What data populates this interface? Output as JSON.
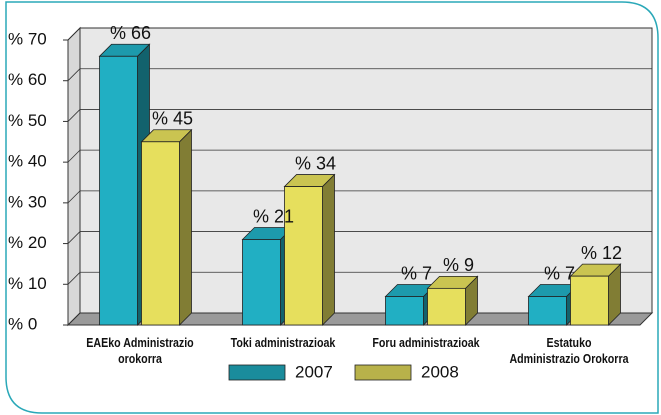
{
  "chart_data": {
    "type": "bar3d",
    "categories": [
      "EAEko Administrazio\norokorra",
      "Toki administrazioak",
      "Foru administrazioak",
      "Estatuko\nAdministrazio Orokorra"
    ],
    "series": [
      {
        "name": "2007",
        "color": "#1a8c9c",
        "values": [
          66,
          21,
          7,
          7
        ],
        "value_labels": [
          "% 66",
          "% 21",
          "% 7",
          "% 7"
        ]
      },
      {
        "name": "2008",
        "color": "#b8b24a",
        "values": [
          45,
          34,
          9,
          12
        ],
        "value_labels": [
          "% 45",
          "% 34",
          "% 9",
          "% 12"
        ]
      }
    ],
    "ylim": [
      0,
      70
    ],
    "yticks": [
      {
        "value": 0,
        "label": "% 0"
      },
      {
        "value": 10,
        "label": "% 10"
      },
      {
        "value": 20,
        "label": "% 20"
      },
      {
        "value": 30,
        "label": "% 30"
      },
      {
        "value": 40,
        "label": "% 40"
      },
      {
        "value": 50,
        "label": "% 50"
      },
      {
        "value": 60,
        "label": "% 60"
      },
      {
        "value": 70,
        "label": "% 70"
      }
    ],
    "grid": true
  }
}
